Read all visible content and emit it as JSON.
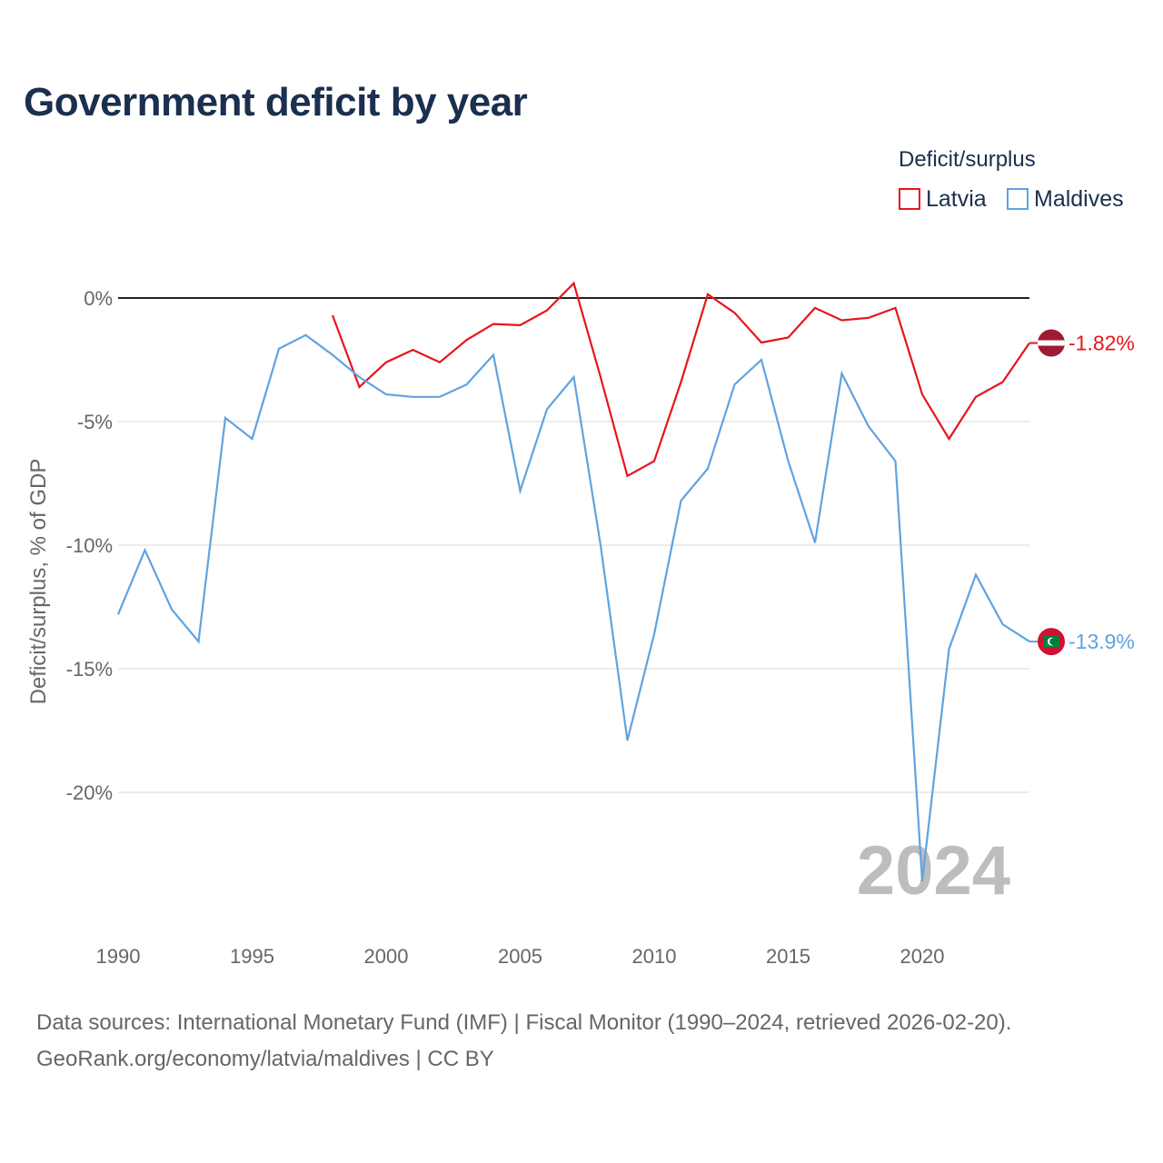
{
  "title": "Government deficit by year",
  "legend": {
    "title": "Deficit/surplus",
    "items": [
      {
        "name": "Latvia",
        "color": "#e8141c"
      },
      {
        "name": "Maldives",
        "color": "#5fa3e0"
      }
    ]
  },
  "source": {
    "line1": "Data sources: International Monetary Fund (IMF) | Fiscal Monitor (1990–2024, retrieved 2026-02-20).",
    "line2": "GeoRank.org/economy/latvia/maldives | CC BY"
  },
  "year_label": "2024",
  "chart_data": {
    "type": "line",
    "title": "Government deficit by year",
    "xlabel": "",
    "ylabel": "Deficit/surplus, % of GDP",
    "xlim": [
      1990,
      2024
    ],
    "ylim": [
      -25,
      0.6
    ],
    "x_ticks": [
      1990,
      1995,
      2000,
      2005,
      2010,
      2015,
      2020
    ],
    "x_tick_labels": [
      "1990",
      "1995",
      "2000",
      "2005",
      "2010",
      "2015",
      "2020"
    ],
    "y_ticks": [
      0,
      -5,
      -10,
      -15,
      -20
    ],
    "y_tick_labels": [
      "0%",
      "-5%",
      "-10%",
      "-15%",
      "-20%"
    ],
    "grid": true,
    "legend_position": "top-right",
    "series": [
      {
        "name": "Latvia",
        "color": "#e8141c",
        "end_label": "-1.82%",
        "x": [
          1998,
          1999,
          2000,
          2001,
          2002,
          2003,
          2004,
          2005,
          2006,
          2007,
          2008,
          2009,
          2010,
          2011,
          2012,
          2013,
          2014,
          2015,
          2016,
          2017,
          2018,
          2019,
          2020,
          2021,
          2022,
          2023,
          2024
        ],
        "values": [
          -0.7,
          -3.6,
          -2.6,
          -2.1,
          -2.6,
          -1.7,
          -1.05,
          -1.1,
          -0.5,
          0.6,
          -3.2,
          -7.2,
          -6.6,
          -3.4,
          0.15,
          -0.6,
          -1.8,
          -1.6,
          -0.4,
          -0.9,
          -0.8,
          -0.4,
          -3.9,
          -5.7,
          -4.0,
          -3.4,
          -1.82
        ]
      },
      {
        "name": "Maldives",
        "color": "#5fa3e0",
        "end_label": "-13.9%",
        "x": [
          1990,
          1991,
          1992,
          1993,
          1994,
          1995,
          1996,
          1997,
          1998,
          1999,
          2000,
          2001,
          2002,
          2003,
          2004,
          2005,
          2006,
          2007,
          2008,
          2009,
          2010,
          2011,
          2012,
          2013,
          2014,
          2015,
          2016,
          2017,
          2018,
          2019,
          2020,
          2021,
          2022,
          2023,
          2024
        ],
        "values": [
          -12.8,
          -10.2,
          -12.6,
          -13.9,
          -4.85,
          -5.7,
          -2.05,
          -1.5,
          -2.3,
          -3.2,
          -3.9,
          -4.0,
          -4.0,
          -3.5,
          -2.3,
          -7.8,
          -4.5,
          -3.2,
          -10.0,
          -17.9,
          -13.6,
          -8.2,
          -6.9,
          -3.5,
          -2.5,
          -6.6,
          -9.9,
          -3.05,
          -5.2,
          -6.6,
          -23.6,
          -14.2,
          -11.2,
          -13.2,
          -13.9
        ]
      }
    ]
  }
}
